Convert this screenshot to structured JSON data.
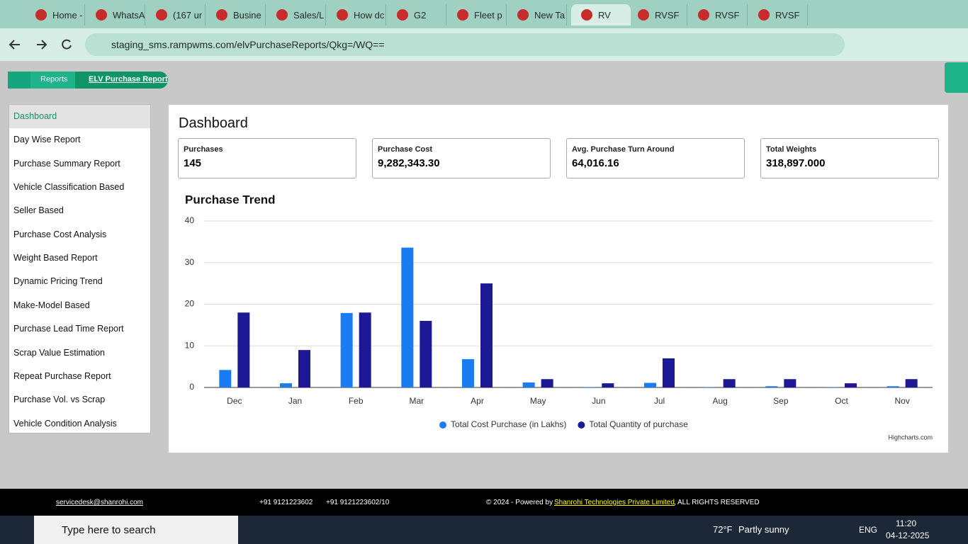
{
  "browser": {
    "tabs": [
      "Home -",
      "WhatsA",
      "(167 ur",
      "Busine",
      "Sales/L",
      "How dc",
      "G2",
      "Fleet p",
      "New Ta",
      "RV",
      "RVSF",
      "RVSF",
      "RVSF"
    ],
    "url": "staging_sms.rampwms.com/elvPurchaseReports/Qkg=/WQ=="
  },
  "breadcrumb": [
    "Reports",
    "ELV Purchase Report"
  ],
  "sidebar": [
    "Dashboard",
    "Day Wise Report",
    "Purchase Summary Report",
    "Vehicle Classification Based",
    "Seller Based",
    "Purchase Cost Analysis",
    "Weight Based Report",
    "Dynamic Pricing Trend",
    "Make-Model Based",
    "Purchase Lead Time Report",
    "Scrap Value Estimation",
    "Repeat Purchase Report",
    "Purchase Vol. vs Scrap",
    "Vehicle Condition Analysis"
  ],
  "dashboard": {
    "title": "Dashboard",
    "cards": [
      {
        "label": "Purchases",
        "value": "145"
      },
      {
        "label": "Purchase Cost",
        "value": "9,282,343.30"
      },
      {
        "label": "Avg. Purchase Turn Around",
        "value": "64,016.16"
      },
      {
        "label": "Total Weights",
        "value": "318,897.000"
      }
    ]
  },
  "chart_data": {
    "type": "bar",
    "title": "Purchase Trend",
    "credits": "Highcharts.com",
    "categories": [
      "Dec",
      "Jan",
      "Feb",
      "Mar",
      "Apr",
      "May",
      "Jun",
      "Jul",
      "Aug",
      "Sep",
      "Oct",
      "Nov"
    ],
    "series": [
      {
        "name": "Total Cost Purchase (in Lakhs)",
        "color": "#1a7cf2",
        "values": [
          4.2,
          1.0,
          17.9,
          33.6,
          6.8,
          1.2,
          0.1,
          1.1,
          0.1,
          0.3,
          0.1,
          0.3
        ]
      },
      {
        "name": "Total Quantity of purchase",
        "color": "#1c1896",
        "values": [
          18,
          9,
          18,
          16,
          25,
          2,
          1,
          7,
          2,
          2,
          1,
          2
        ]
      }
    ],
    "ylim": [
      0,
      40
    ],
    "yticks": [
      0,
      10,
      20,
      30,
      40
    ],
    "grid": true,
    "legend": "bottom"
  },
  "footer": {
    "email": "servicedesk@shanrohi.com",
    "phone1": "+91 9121223602",
    "phone2": "+91 9121223602/10",
    "copyright": "© 2024 - Powered by",
    "company": "Shanrohi Technologies Private Limited",
    "rights": ", ALL RIGHTS RESERVED"
  },
  "taskbar": {
    "search": "Type here to search",
    "temp": "72°F",
    "weather": "Partly sunny",
    "lang": "ENG",
    "time": "11:20",
    "date": "04-12-2025"
  }
}
